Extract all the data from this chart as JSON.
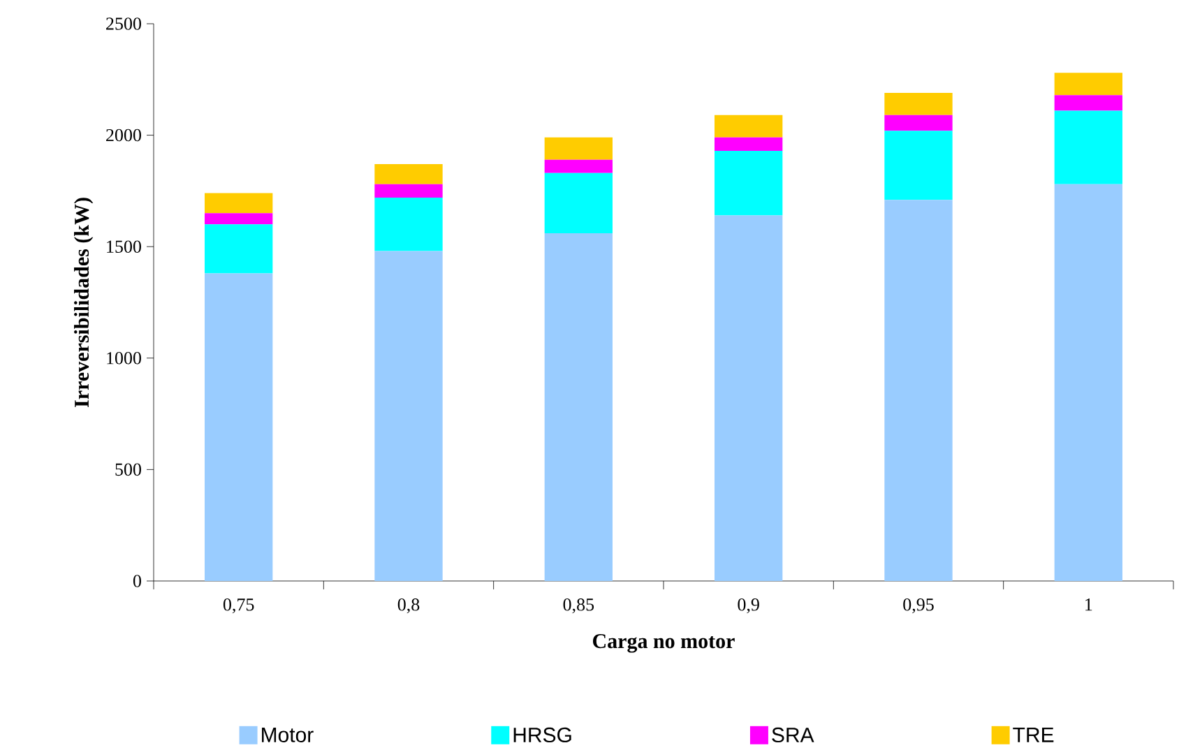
{
  "chart_data": {
    "type": "bar",
    "stacked": true,
    "xlabel": "Carga no motor",
    "ylabel": "Irreversibilidades (kW)",
    "categories": [
      "0,75",
      "0,8",
      "0,85",
      "0,9",
      "0,95",
      "1"
    ],
    "series": [
      {
        "name": "Motor",
        "color": "#99ccff",
        "values": [
          1380,
          1480,
          1560,
          1640,
          1710,
          1780
        ]
      },
      {
        "name": "HRSG",
        "color": "#00ffff",
        "values": [
          220,
          240,
          270,
          290,
          310,
          330
        ]
      },
      {
        "name": "SRA",
        "color": "#ff00ff",
        "values": [
          50,
          60,
          60,
          60,
          70,
          70
        ]
      },
      {
        "name": "TRE",
        "color": "#ffcc00",
        "values": [
          90,
          90,
          100,
          100,
          100,
          100
        ]
      }
    ],
    "ylim": [
      0,
      2500
    ],
    "yticks": [
      0,
      500,
      1000,
      1500,
      2000,
      2500
    ],
    "grid": false,
    "legend": "bottom"
  }
}
